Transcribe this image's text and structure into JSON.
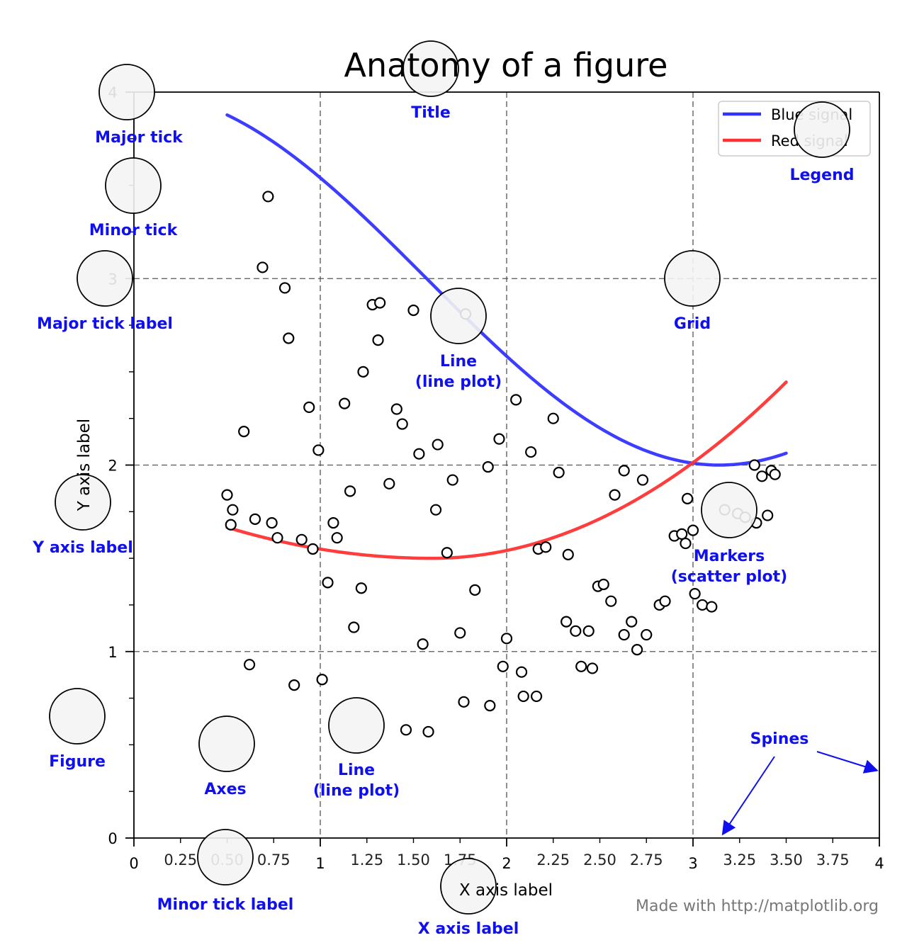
{
  "chart_data": {
    "title": "Anatomy of a figure",
    "xlabel": "X axis label",
    "ylabel": "Y axis label",
    "xlim": [
      0,
      4
    ],
    "ylim": [
      0,
      4
    ],
    "grid": true,
    "legend_position": "top-right",
    "credit": "Made with http://matplotlib.org",
    "x_major_ticks": [
      {
        "value": 0,
        "label": "0"
      },
      {
        "value": 1,
        "label": "1"
      },
      {
        "value": 2,
        "label": "2"
      },
      {
        "value": 3,
        "label": "3"
      },
      {
        "value": 4,
        "label": "4"
      }
    ],
    "x_minor_ticks": [
      {
        "value": 0.25,
        "label": "0.25"
      },
      {
        "value": 0.5,
        "label": "0.50"
      },
      {
        "value": 0.75,
        "label": "0.75"
      },
      {
        "value": 1.25,
        "label": "1.25"
      },
      {
        "value": 1.5,
        "label": "1.50"
      },
      {
        "value": 1.75,
        "label": "1.75"
      },
      {
        "value": 2.25,
        "label": "2.25"
      },
      {
        "value": 2.5,
        "label": "2.50"
      },
      {
        "value": 2.75,
        "label": "2.75"
      },
      {
        "value": 3.25,
        "label": "3.25"
      },
      {
        "value": 3.5,
        "label": "3.50"
      },
      {
        "value": 3.75,
        "label": "3.75"
      }
    ],
    "y_major_ticks": [
      {
        "value": 0,
        "label": "0"
      },
      {
        "value": 1,
        "label": "1"
      },
      {
        "value": 2,
        "label": "2"
      },
      {
        "value": 3,
        "label": "3"
      },
      {
        "value": 4,
        "label": "4"
      }
    ],
    "y_minor_ticks": [
      0.25,
      0.5,
      0.75,
      1.25,
      1.5,
      1.75,
      2.25,
      2.5,
      2.75,
      3.25,
      3.5,
      3.75
    ],
    "series": [
      {
        "name": "Blue signal",
        "type": "line",
        "color": "#3333ff",
        "formula": "3 + cos(x)",
        "x_range": [
          0.5,
          3.5
        ]
      },
      {
        "name": "Red signal",
        "type": "line",
        "color": "#ff3333",
        "formula": "1 + sin(x) - cos(x)... approx",
        "x_range": [
          0.5,
          3.5
        ]
      },
      {
        "name": "Markers",
        "type": "scatter",
        "color": "#000000",
        "points": [
          [
            0.72,
            3.44
          ],
          [
            0.69,
            3.06
          ],
          [
            0.81,
            2.95
          ],
          [
            0.83,
            2.68
          ],
          [
            1.28,
            2.86
          ],
          [
            1.32,
            2.87
          ],
          [
            1.23,
            2.5
          ],
          [
            1.31,
            2.67
          ],
          [
            1.5,
            2.83
          ],
          [
            1.78,
            2.81
          ],
          [
            0.59,
            2.18
          ],
          [
            0.94,
            2.31
          ],
          [
            0.99,
            2.08
          ],
          [
            1.13,
            2.33
          ],
          [
            1.41,
            2.3
          ],
          [
            1.44,
            2.22
          ],
          [
            1.53,
            2.06
          ],
          [
            1.63,
            2.11
          ],
          [
            1.37,
            1.9
          ],
          [
            1.16,
            1.86
          ],
          [
            1.71,
            1.92
          ],
          [
            1.9,
            1.99
          ],
          [
            1.96,
            2.14
          ],
          [
            2.05,
            2.35
          ],
          [
            2.13,
            2.07
          ],
          [
            2.25,
            2.25
          ],
          [
            2.28,
            1.96
          ],
          [
            2.63,
            1.97
          ],
          [
            2.58,
            1.84
          ],
          [
            2.73,
            1.92
          ],
          [
            0.5,
            1.84
          ],
          [
            0.53,
            1.76
          ],
          [
            0.52,
            1.68
          ],
          [
            0.65,
            1.71
          ],
          [
            0.74,
            1.69
          ],
          [
            0.77,
            1.61
          ],
          [
            0.9,
            1.6
          ],
          [
            0.96,
            1.55
          ],
          [
            1.07,
            1.69
          ],
          [
            1.09,
            1.61
          ],
          [
            1.62,
            1.76
          ],
          [
            1.68,
            1.53
          ],
          [
            1.04,
            1.37
          ],
          [
            1.22,
            1.34
          ],
          [
            1.18,
            1.13
          ],
          [
            1.83,
            1.33
          ],
          [
            2.17,
            1.55
          ],
          [
            2.21,
            1.56
          ],
          [
            2.33,
            1.52
          ],
          [
            2.49,
            1.35
          ],
          [
            2.52,
            1.36
          ],
          [
            2.56,
            1.27
          ],
          [
            2.32,
            1.16
          ],
          [
            2.37,
            1.11
          ],
          [
            2.44,
            1.11
          ],
          [
            2.63,
            1.09
          ],
          [
            2.67,
            1.16
          ],
          [
            2.75,
            1.09
          ],
          [
            2.82,
            1.25
          ],
          [
            2.85,
            1.27
          ],
          [
            2.7,
            1.01
          ],
          [
            1.55,
            1.04
          ],
          [
            1.75,
            1.1
          ],
          [
            2.0,
            1.07
          ],
          [
            1.98,
            0.92
          ],
          [
            2.08,
            0.89
          ],
          [
            2.4,
            0.92
          ],
          [
            2.46,
            0.91
          ],
          [
            2.09,
            0.76
          ],
          [
            2.16,
            0.76
          ],
          [
            1.77,
            0.73
          ],
          [
            1.91,
            0.71
          ],
          [
            1.46,
            0.58
          ],
          [
            1.58,
            0.57
          ],
          [
            0.62,
            0.93
          ],
          [
            0.86,
            0.82
          ],
          [
            1.01,
            0.85
          ],
          [
            2.97,
            1.82
          ],
          [
            2.96,
            1.58
          ],
          [
            3.0,
            1.65
          ],
          [
            3.17,
            1.76
          ],
          [
            3.24,
            1.74
          ],
          [
            3.28,
            1.72
          ],
          [
            3.33,
            2.0
          ],
          [
            3.37,
            1.94
          ],
          [
            3.42,
            1.97
          ],
          [
            3.44,
            1.95
          ],
          [
            3.34,
            1.69
          ],
          [
            3.4,
            1.73
          ],
          [
            3.01,
            1.31
          ],
          [
            3.05,
            1.25
          ],
          [
            3.1,
            1.24
          ],
          [
            2.9,
            1.62
          ],
          [
            2.94,
            1.63
          ]
        ]
      }
    ],
    "annotations": [
      {
        "label": "Major tick",
        "x": 0,
        "y": 4
      },
      {
        "label": "Minor tick",
        "x": 0,
        "y": 3.5
      },
      {
        "label": "Major tick label",
        "x": -0.15,
        "y": 3
      },
      {
        "label": "Grid",
        "x": 3,
        "y": 3
      },
      {
        "label": "Line\n(line plot)",
        "x": 1.75,
        "y": 2.8
      },
      {
        "label": "Y axis label",
        "x": -0.27,
        "y": 1.8
      },
      {
        "label": "Markers\n(scatter plot)",
        "x": 3.2,
        "y": 1.75
      },
      {
        "label": "Figure",
        "x": -0.3,
        "y": 0.65
      },
      {
        "label": "Axes",
        "x": 0.5,
        "y": 0.5
      },
      {
        "label": "Line\n(line plot)",
        "x": 1.2,
        "y": 0.6
      },
      {
        "label": "Minor tick label",
        "x": 0.5,
        "y": -0.1
      },
      {
        "label": "X axis label",
        "x": 1.8,
        "y": -0.28
      },
      {
        "label": "Title",
        "x": 1.6,
        "y": 4.13
      },
      {
        "label": "Legend",
        "x": 3.85,
        "y": 3.8
      },
      {
        "label": "Spines",
        "x": 3.35,
        "y": 0.53
      }
    ]
  }
}
